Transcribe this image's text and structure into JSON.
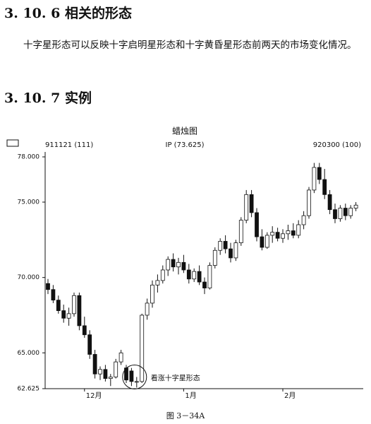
{
  "document": {
    "section_1": "3. 10. 6 相关的形态",
    "paragraph": "十字星形态可以反映十字启明星形态和十字黄昏星形态前两天的市场变化情况。",
    "section_2": "3. 10. 7 实例",
    "caption": "图 3－34A"
  },
  "chart_data": {
    "type": "candlestick",
    "title": "蜡烛图",
    "info_labels": [
      "911121 (111)",
      "IP (73.625)",
      "920300 (100)"
    ],
    "annotation": "看涨十字星形态",
    "categories": [
      null,
      null,
      null,
      null,
      null,
      null,
      null,
      "12月",
      null,
      null,
      null,
      null,
      null,
      null,
      null,
      null,
      null,
      null,
      null,
      null,
      null,
      null,
      null,
      null,
      null,
      null,
      "1月",
      null,
      null,
      null,
      null,
      null,
      null,
      null,
      null,
      null,
      null,
      null,
      null,
      null,
      null,
      null,
      null,
      null,
      null,
      "2月",
      null,
      null,
      null,
      null,
      null,
      null,
      null,
      null,
      null,
      null,
      null,
      null,
      null,
      null
    ],
    "open": [
      69.6,
      69.2,
      68.5,
      67.8,
      67.3,
      67.6,
      68.8,
      66.8,
      66.2,
      64.9,
      63.6,
      63.9,
      63.3,
      63.4,
      64.4,
      64.0,
      63.8,
      63.1,
      63.1,
      67.5,
      68.3,
      69.5,
      69.8,
      70.5,
      71.2,
      70.7,
      71.0,
      70.5,
      69.9,
      70.4,
      69.7,
      69.3,
      70.8,
      71.8,
      72.4,
      71.9,
      71.3,
      72.3,
      73.8,
      75.5,
      74.3,
      72.7,
      72.0,
      72.8,
      73.0,
      72.6,
      72.9,
      73.1,
      72.8,
      73.5,
      74.1,
      75.8,
      77.3,
      76.5,
      75.5,
      74.5,
      73.9,
      74.6,
      74.1,
      74.6
    ],
    "high": [
      69.9,
      69.5,
      68.8,
      68.2,
      68.0,
      69.0,
      69.0,
      67.4,
      66.5,
      65.2,
      64.1,
      64.2,
      63.6,
      64.6,
      65.2,
      64.2,
      64.0,
      63.4,
      67.6,
      68.6,
      69.8,
      70.2,
      70.8,
      71.4,
      71.6,
      71.3,
      71.5,
      70.9,
      70.6,
      70.8,
      70.0,
      71.0,
      72.0,
      72.6,
      72.8,
      72.3,
      72.5,
      74.0,
      75.8,
      75.8,
      74.6,
      73.2,
      73.0,
      73.4,
      73.3,
      73.2,
      73.5,
      73.6,
      73.8,
      74.4,
      76.0,
      77.6,
      77.6,
      77.2,
      75.8,
      74.9,
      74.8,
      74.9,
      74.8,
      75.0
    ],
    "low": [
      68.9,
      68.3,
      67.6,
      67.0,
      66.8,
      67.4,
      66.5,
      66.0,
      64.6,
      63.3,
      63.2,
      63.1,
      62.8,
      63.3,
      64.2,
      63.0,
      62.8,
      62.7,
      63.0,
      67.2,
      68.0,
      69.0,
      69.6,
      70.1,
      70.4,
      70.2,
      70.3,
      69.6,
      69.7,
      69.5,
      68.9,
      69.2,
      70.6,
      71.5,
      71.6,
      71.0,
      71.1,
      72.1,
      73.6,
      74.0,
      72.4,
      71.8,
      71.9,
      72.3,
      72.4,
      72.3,
      72.5,
      72.6,
      72.6,
      73.2,
      73.9,
      75.6,
      76.2,
      75.2,
      74.2,
      73.6,
      73.7,
      73.8,
      73.9,
      74.4
    ],
    "close": [
      69.2,
      68.5,
      67.8,
      67.3,
      67.6,
      68.8,
      66.8,
      66.2,
      64.9,
      63.6,
      63.9,
      63.3,
      63.4,
      64.4,
      65.0,
      63.2,
      63.1,
      63.1,
      67.5,
      68.3,
      69.5,
      69.8,
      70.5,
      71.2,
      70.7,
      71.0,
      70.5,
      69.9,
      70.4,
      69.7,
      69.3,
      70.8,
      71.8,
      72.4,
      71.9,
      71.3,
      72.3,
      73.8,
      75.5,
      74.3,
      72.7,
      72.0,
      72.8,
      73.0,
      72.6,
      72.9,
      73.1,
      72.8,
      73.5,
      74.1,
      75.8,
      77.3,
      76.5,
      75.5,
      74.5,
      73.9,
      74.6,
      74.1,
      74.6,
      74.8
    ],
    "up_color": "#ffffff",
    "down_color": "#111111",
    "ylim": [
      62.625,
      78
    ],
    "yticks": [
      {
        "value": 62.625,
        "label": "62.625"
      },
      {
        "value": 65,
        "label": "65.000"
      },
      {
        "value": 70,
        "label": "70.000"
      },
      {
        "value": 75,
        "label": "75.000"
      },
      {
        "value": 78,
        "label": "78.000"
      }
    ]
  }
}
